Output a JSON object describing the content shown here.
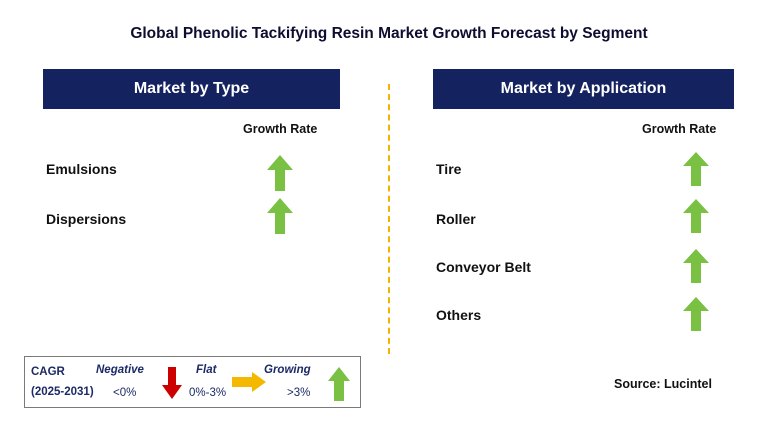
{
  "title": "Global Phenolic Tackifying Resin Market Growth Forecast by Segment",
  "colors": {
    "header_bg": "#14235f",
    "growing": "#7ac143",
    "flat": "#f5b800",
    "negative": "#cc0000",
    "divider": "#f2b400"
  },
  "left_panel": {
    "header": "Market by Type",
    "column_header": "Growth Rate",
    "rows": [
      {
        "label": "Emulsions",
        "trend": "growing",
        "icon": "up-arrow-icon"
      },
      {
        "label": "Dispersions",
        "trend": "growing",
        "icon": "up-arrow-icon"
      }
    ]
  },
  "right_panel": {
    "header": "Market by Application",
    "column_header": "Growth Rate",
    "rows": [
      {
        "label": "Tire",
        "trend": "growing",
        "icon": "up-arrow-icon"
      },
      {
        "label": "Roller",
        "trend": "growing",
        "icon": "up-arrow-icon"
      },
      {
        "label": "Conveyor Belt",
        "trend": "growing",
        "icon": "up-arrow-icon"
      },
      {
        "label": "Others",
        "trend": "growing",
        "icon": "up-arrow-icon"
      }
    ]
  },
  "legend": {
    "cagr_label": "CAGR",
    "period": "(2025-2031)",
    "negative_label": "Negative",
    "negative_range": "<0%",
    "flat_label": "Flat",
    "flat_range": "0%-3%",
    "growing_label": "Growing",
    "growing_range": ">3%"
  },
  "source": "Source: Lucintel"
}
